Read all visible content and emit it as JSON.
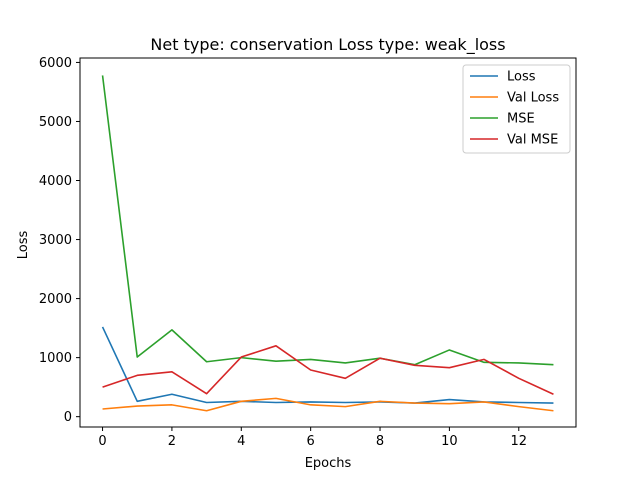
{
  "chart_data": {
    "type": "line",
    "title": "Net type: conservation Loss type: weak_loss",
    "xlabel": "Epochs",
    "ylabel": "Loss",
    "x": [
      0,
      1,
      2,
      3,
      4,
      5,
      6,
      7,
      8,
      9,
      10,
      11,
      12,
      13
    ],
    "xlim": [
      -0.65,
      13.65
    ],
    "ylim": [
      -175,
      6075
    ],
    "xticks": [
      0,
      2,
      4,
      6,
      8,
      10,
      12
    ],
    "yticks": [
      0,
      1000,
      2000,
      3000,
      4000,
      5000,
      6000
    ],
    "grid": false,
    "legend_position": "top-right",
    "series": [
      {
        "name": "Loss",
        "color": "#1f77b4",
        "values": [
          1520,
          260,
          380,
          240,
          260,
          240,
          250,
          240,
          250,
          230,
          290,
          250,
          240,
          230
        ]
      },
      {
        "name": "Val Loss",
        "color": "#ff7f0e",
        "values": [
          130,
          180,
          200,
          100,
          260,
          310,
          200,
          170,
          260,
          230,
          220,
          250,
          170,
          100
        ]
      },
      {
        "name": "MSE",
        "color": "#2ca02c",
        "values": [
          5780,
          1010,
          1470,
          930,
          1000,
          940,
          970,
          910,
          990,
          880,
          1130,
          920,
          910,
          880
        ]
      },
      {
        "name": "Val MSE",
        "color": "#d62728",
        "values": [
          500,
          700,
          760,
          390,
          1010,
          1200,
          790,
          650,
          990,
          870,
          830,
          970,
          650,
          380
        ]
      }
    ]
  }
}
